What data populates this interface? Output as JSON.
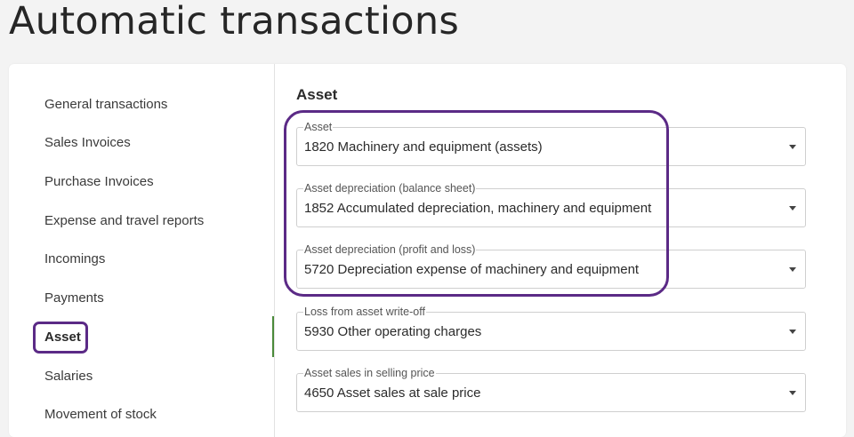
{
  "page": {
    "title": "Automatic transactions"
  },
  "sidebar": {
    "items": [
      {
        "label": "General transactions"
      },
      {
        "label": "Sales Invoices"
      },
      {
        "label": "Purchase Invoices"
      },
      {
        "label": "Expense and travel reports"
      },
      {
        "label": "Incomings"
      },
      {
        "label": "Payments"
      },
      {
        "label": "Asset"
      },
      {
        "label": "Salaries"
      },
      {
        "label": "Movement of stock"
      }
    ],
    "active": "Asset",
    "accent_color": "#5b2a86",
    "active_bar_color": "#4a8a3a"
  },
  "main": {
    "section_title": "Asset",
    "fields": [
      {
        "label": "Asset",
        "value": "1820 Machinery and equipment (assets)"
      },
      {
        "label": "Asset depreciation (balance sheet)",
        "value": "1852 Accumulated depreciation, machinery and equipment"
      },
      {
        "label": "Asset depreciation (profit and loss)",
        "value": "5720 Depreciation expense of machinery and equipment"
      },
      {
        "label": "Loss from asset write-off",
        "value": "5930 Other operating charges"
      },
      {
        "label": "Asset sales in selling price",
        "value": "4650 Asset sales at sale price"
      }
    ]
  }
}
